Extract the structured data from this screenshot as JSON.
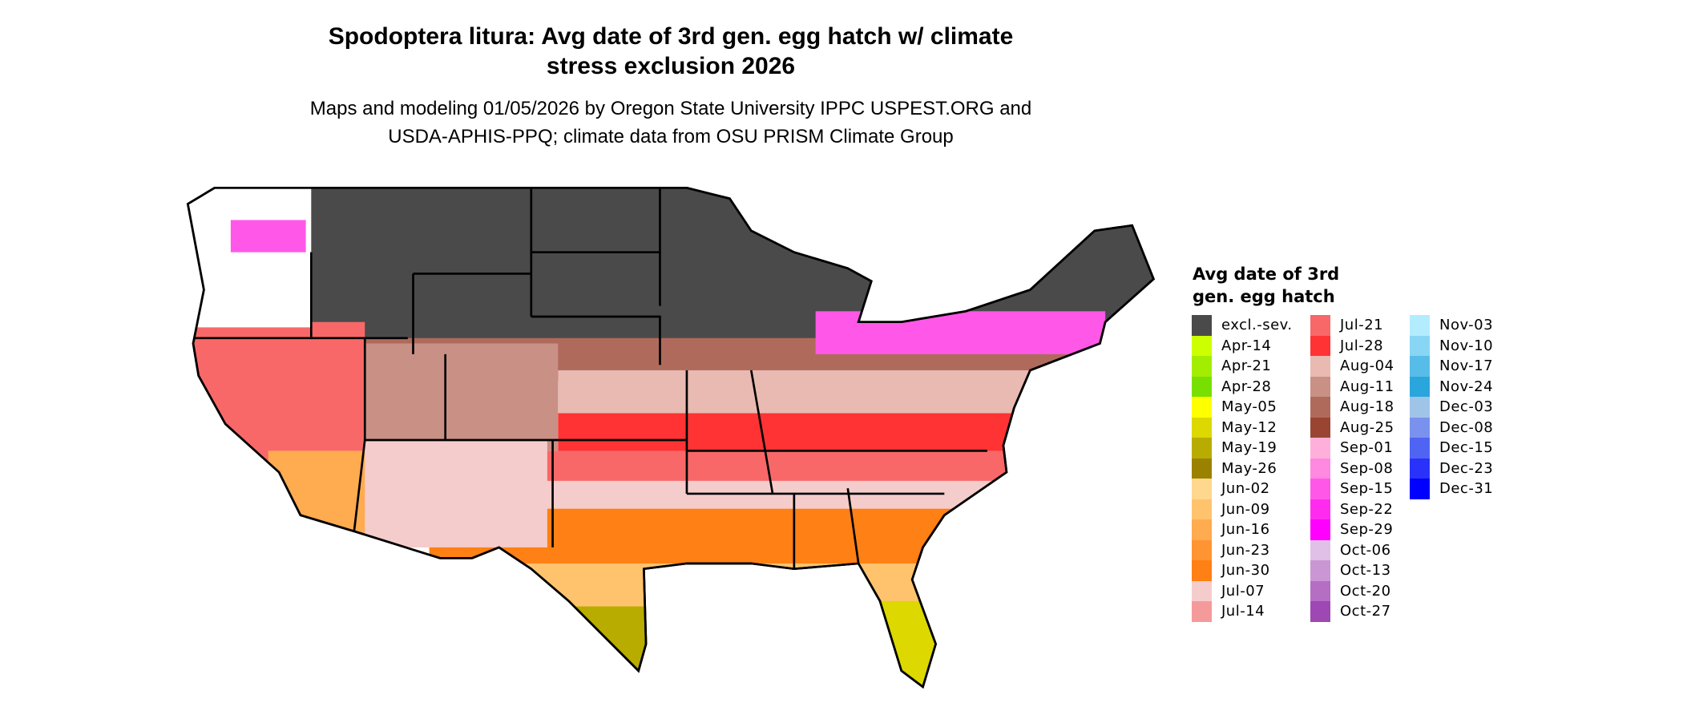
{
  "title": {
    "line1": "Spodoptera litura: Avg date of 3rd gen. egg hatch w/ climate",
    "line2": "stress exclusion 2026"
  },
  "subtitle": {
    "line1": "Maps and modeling 01/05/2026 by Oregon State University IPPC USPEST.ORG and",
    "line2": "USDA-APHIS-PPQ; climate data from OSU PRISM Climate Group"
  },
  "legend": {
    "title_line1": "Avg date of 3rd",
    "title_line2": "gen. egg hatch",
    "columns": [
      [
        {
          "label": "excl.-sev.",
          "color": "#4a4a4a"
        },
        {
          "label": "Apr-14",
          "color": "#ccff00"
        },
        {
          "label": "Apr-21",
          "color": "#a3ee00"
        },
        {
          "label": "Apr-28",
          "color": "#77e000"
        },
        {
          "label": "May-05",
          "color": "#ffff00"
        },
        {
          "label": "May-12",
          "color": "#dcd800"
        },
        {
          "label": "May-19",
          "color": "#b8ac00"
        },
        {
          "label": "May-26",
          "color": "#9a8200"
        },
        {
          "label": "Jun-02",
          "color": "#ffd88e"
        },
        {
          "label": "Jun-09",
          "color": "#ffc36e"
        },
        {
          "label": "Jun-16",
          "color": "#ffab50"
        },
        {
          "label": "Jun-23",
          "color": "#ff9432"
        },
        {
          "label": "Jun-30",
          "color": "#ff8014"
        },
        {
          "label": "Jul-07",
          "color": "#f5cccc"
        },
        {
          "label": "Jul-14",
          "color": "#f59a9a"
        }
      ],
      [
        {
          "label": "Jul-21",
          "color": "#f86868"
        },
        {
          "label": "Jul-28",
          "color": "#ff3333"
        },
        {
          "label": "Aug-04",
          "color": "#e8bab2"
        },
        {
          "label": "Aug-11",
          "color": "#c99086"
        },
        {
          "label": "Aug-18",
          "color": "#b06a5c"
        },
        {
          "label": "Aug-25",
          "color": "#9a4432"
        },
        {
          "label": "Sep-01",
          "color": "#ffb0da"
        },
        {
          "label": "Sep-08",
          "color": "#ff88e0"
        },
        {
          "label": "Sep-15",
          "color": "#ff58e8"
        },
        {
          "label": "Sep-22",
          "color": "#ff2cf0"
        },
        {
          "label": "Sep-29",
          "color": "#ff00ff"
        },
        {
          "label": "Oct-06",
          "color": "#e0c0e6"
        },
        {
          "label": "Oct-13",
          "color": "#ca96d4"
        },
        {
          "label": "Oct-20",
          "color": "#b46ec4"
        },
        {
          "label": "Oct-27",
          "color": "#9e48b4"
        }
      ],
      [
        {
          "label": "Nov-03",
          "color": "#b4ecff"
        },
        {
          "label": "Nov-10",
          "color": "#88d6f4"
        },
        {
          "label": "Nov-17",
          "color": "#58bce8"
        },
        {
          "label": "Nov-24",
          "color": "#2aa6dc"
        },
        {
          "label": "Dec-03",
          "color": "#a0c4e8"
        },
        {
          "label": "Dec-08",
          "color": "#7a92ee"
        },
        {
          "label": "Dec-15",
          "color": "#5064f4"
        },
        {
          "label": "Dec-23",
          "color": "#2a32fa"
        },
        {
          "label": "Dec-31",
          "color": "#0000ff"
        }
      ]
    ]
  }
}
